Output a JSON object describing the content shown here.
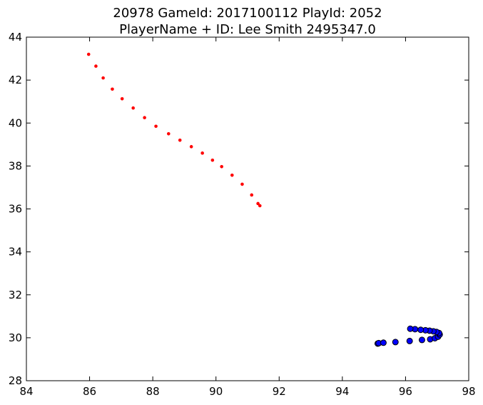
{
  "chart_data": {
    "type": "scatter",
    "title_line1": "20978 GameId: 2017100112 PlayId: 2052",
    "title_line2": "PlayerName + ID: Lee Smith 2495347.0",
    "xlabel": "",
    "ylabel": "",
    "xlim": [
      84,
      98
    ],
    "ylim": [
      28,
      44
    ],
    "xticks": [
      "84",
      "86",
      "88",
      "90",
      "92",
      "94",
      "96",
      "98"
    ],
    "yticks": [
      "28",
      "30",
      "32",
      "34",
      "36",
      "38",
      "40",
      "42",
      "44"
    ],
    "grid": false,
    "series": [
      {
        "marker": "small-dot",
        "color": "#ff0000",
        "x": [
          85.97,
          86.2,
          86.43,
          86.72,
          87.03,
          87.38,
          87.74,
          88.1,
          88.5,
          88.86,
          89.22,
          89.57,
          89.89,
          90.18,
          90.51,
          90.83,
          91.13,
          91.33,
          91.39
        ],
        "y": [
          43.2,
          42.65,
          42.1,
          41.58,
          41.13,
          40.7,
          40.25,
          39.85,
          39.5,
          39.2,
          38.9,
          38.6,
          38.27,
          37.97,
          37.57,
          37.15,
          36.65,
          36.25,
          36.15
        ]
      },
      {
        "marker": "circle",
        "color": "#0000ff",
        "x": [
          95.12,
          95.15,
          95.3,
          95.68,
          96.13,
          96.52,
          96.78,
          96.93,
          97.03,
          97.08,
          97.06,
          96.98,
          96.88,
          96.76,
          96.63,
          96.48,
          96.3,
          96.15
        ],
        "y": [
          29.73,
          29.75,
          29.77,
          29.8,
          29.85,
          29.9,
          29.93,
          29.98,
          30.05,
          30.15,
          30.22,
          30.27,
          30.3,
          30.33,
          30.35,
          30.37,
          30.4,
          30.42
        ]
      }
    ]
  }
}
